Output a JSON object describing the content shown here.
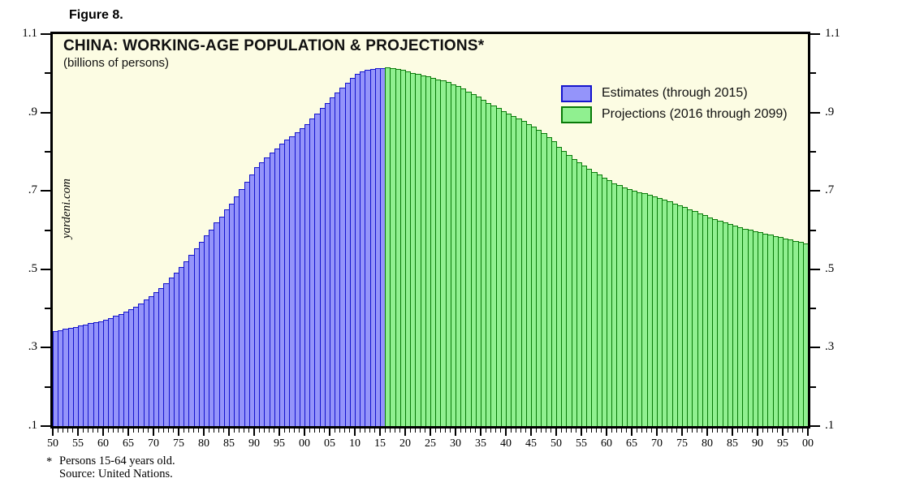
{
  "figure_label": "Figure 8.",
  "watermark": "yardeni.com",
  "footnote": {
    "marker": "*",
    "line1": "Persons 15-64 years old.",
    "line2": "Source: United Nations."
  },
  "chart_data": {
    "type": "bar",
    "title": "CHINA: WORKING-AGE POPULATION & PROJECTIONS*",
    "subtitle": "(billions of persons)",
    "background": "#FCFCE3",
    "ylim": [
      0.1,
      1.1
    ],
    "y_major_ticks": [
      1.1,
      0.9,
      0.7,
      0.5,
      0.3,
      0.1
    ],
    "y_major_tick_labels": [
      "1.1",
      ".9",
      ".7",
      ".5",
      ".3",
      ".1"
    ],
    "y_minor_ticks": [
      1.0,
      0.8,
      0.6,
      0.4,
      0.2
    ],
    "x_start_year": 1950,
    "x_axis_end_year": 2100,
    "x_labeled_tick_interval": 5,
    "x_tick_labels": [
      "50",
      "55",
      "60",
      "65",
      "70",
      "75",
      "80",
      "85",
      "90",
      "95",
      "00",
      "05",
      "10",
      "15",
      "20",
      "25",
      "30",
      "35",
      "40",
      "45",
      "50",
      "55",
      "60",
      "65",
      "70",
      "75",
      "80",
      "85",
      "90",
      "95",
      "00"
    ],
    "estimates_end_year": 2015,
    "legend": [
      {
        "label": "Estimates (through 2015)",
        "fill": "#9494FA",
        "border": "#1414CC"
      },
      {
        "label": "Projections (2016 through 2099)",
        "fill": "#90F090",
        "border": "#087A08"
      }
    ],
    "values_start_year": 1950,
    "values_end_year": 2099,
    "values": [
      0.343,
      0.345,
      0.348,
      0.35,
      0.353,
      0.356,
      0.359,
      0.362,
      0.365,
      0.368,
      0.372,
      0.376,
      0.381,
      0.386,
      0.392,
      0.398,
      0.405,
      0.413,
      0.422,
      0.431,
      0.441,
      0.453,
      0.465,
      0.478,
      0.492,
      0.506,
      0.521,
      0.537,
      0.553,
      0.569,
      0.586,
      0.602,
      0.619,
      0.635,
      0.652,
      0.668,
      0.686,
      0.705,
      0.724,
      0.742,
      0.76,
      0.773,
      0.785,
      0.797,
      0.809,
      0.82,
      0.83,
      0.84,
      0.85,
      0.86,
      0.87,
      0.884,
      0.898,
      0.912,
      0.925,
      0.938,
      0.951,
      0.964,
      0.976,
      0.988,
      0.998,
      1.004,
      1.008,
      1.011,
      1.013,
      1.014,
      1.015,
      1.014,
      1.012,
      1.009,
      1.005,
      1.001,
      0.998,
      0.995,
      0.992,
      0.989,
      0.985,
      0.981,
      0.977,
      0.972,
      0.967,
      0.961,
      0.954,
      0.947,
      0.94,
      0.933,
      0.925,
      0.918,
      0.911,
      0.904,
      0.897,
      0.891,
      0.885,
      0.878,
      0.871,
      0.864,
      0.856,
      0.847,
      0.837,
      0.827,
      0.812,
      0.801,
      0.791,
      0.782,
      0.773,
      0.765,
      0.757,
      0.749,
      0.741,
      0.734,
      0.727,
      0.72,
      0.714,
      0.709,
      0.704,
      0.7,
      0.697,
      0.694,
      0.69,
      0.686,
      0.682,
      0.678,
      0.673,
      0.668,
      0.663,
      0.658,
      0.653,
      0.648,
      0.643,
      0.638,
      0.633,
      0.628,
      0.624,
      0.62,
      0.616,
      0.612,
      0.608,
      0.604,
      0.6,
      0.597,
      0.594,
      0.591,
      0.588,
      0.585,
      0.582,
      0.579,
      0.576,
      0.573,
      0.569,
      0.565
    ]
  }
}
